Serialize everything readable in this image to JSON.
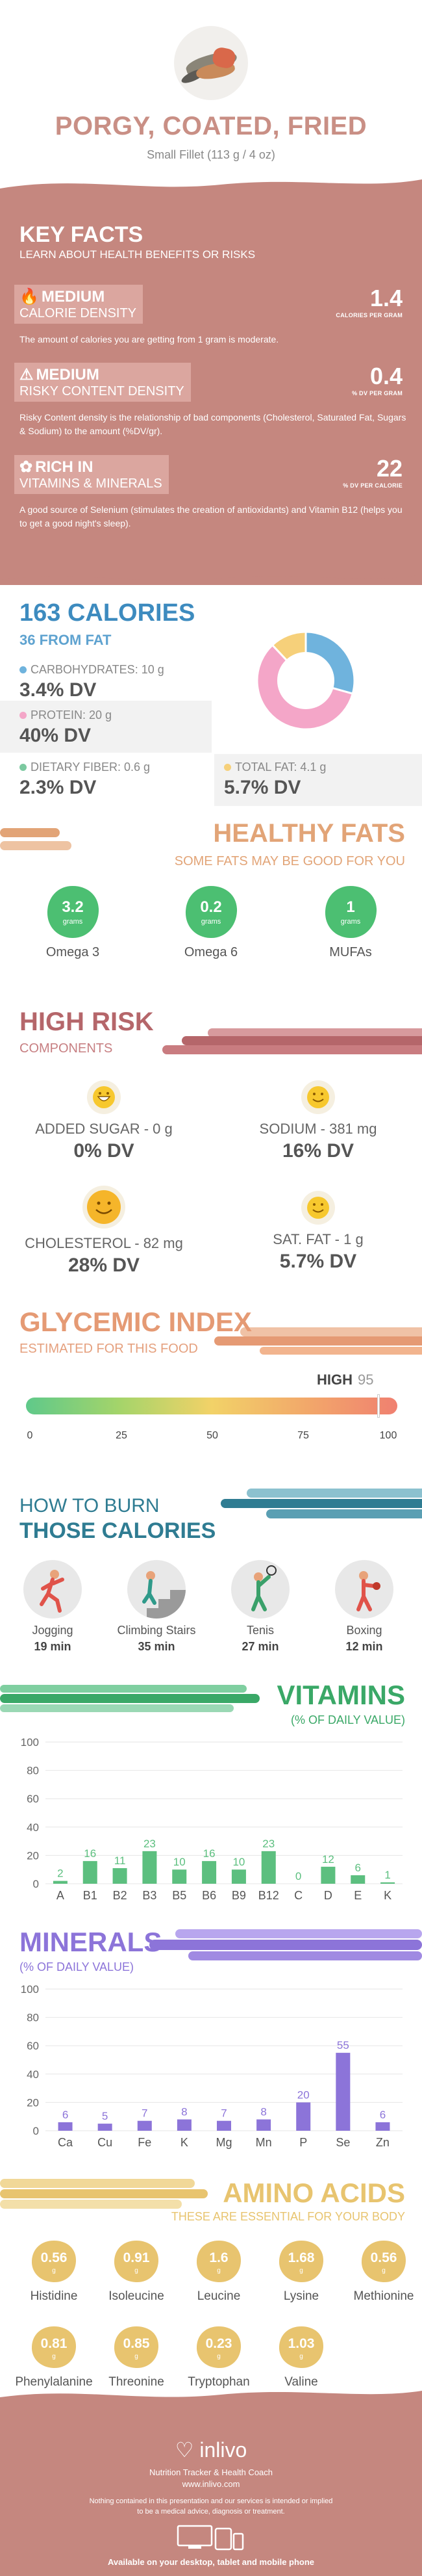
{
  "header": {
    "title": "PORGY, COATED, FRIED",
    "serving": "Small Fillet (113 g / 4 oz)"
  },
  "key_facts": {
    "title": "KEY FACTS",
    "subtitle": "LEARN ABOUT HEALTH BENEFITS OR RISKS",
    "items": [
      {
        "level": "MEDIUM",
        "label": "CALORIE DENSITY",
        "icon": "flame-icon",
        "value": "1.4",
        "unit": "CALORIES PER GRAM",
        "desc": "The amount of calories you are getting from 1 gram is moderate."
      },
      {
        "level": "MEDIUM",
        "label": "RISKY CONTENT DENSITY",
        "icon": "warning-icon",
        "value": "0.4",
        "unit": "% DV PER GRAM",
        "desc": "Risky Content density is the relationship of bad components (Cholesterol, Saturated Fat, Sugars & Sodium) to the amount (%DV/gr)."
      },
      {
        "level": "RICH  IN",
        "label": "VITAMINS & MINERALS",
        "icon": "leaf-icon",
        "value": "22",
        "unit": "% DV PER CALORIE",
        "desc": "A good source of Selenium (stimulates the creation of antioxidants) and Vitamin B12 (helps you to get a good night's sleep)."
      }
    ]
  },
  "calories": {
    "title": "163 CALORIES",
    "from_fat": "36 FROM FAT",
    "macros": {
      "carbs": {
        "label": "CARBOHYDRATES: 10 g",
        "dv": "3.4% DV",
        "color": "#6fb3dd"
      },
      "protein": {
        "label": "PROTEIN: 20 g",
        "dv": "40% DV",
        "color": "#f4a6c8"
      },
      "fiber": {
        "label": "DIETARY FIBER: 0.6 g",
        "dv": "2.3% DV",
        "color": "#7cc9a0"
      },
      "fat": {
        "label": "TOTAL FAT: 4.1 g",
        "dv": "5.7% DV",
        "color": "#f6d07a"
      }
    },
    "chart_data": {
      "type": "pie",
      "categories": [
        "Carbohydrates",
        "Protein",
        "Total Fat"
      ],
      "values": [
        10,
        20,
        4.1
      ],
      "colors": [
        "#6fb3dd",
        "#f4a6c8",
        "#f6d07a"
      ]
    }
  },
  "healthy_fats": {
    "title": "HEALTHY FATS",
    "subtitle": "SOME FATS MAY BE GOOD FOR YOU",
    "items": [
      {
        "value": "3.2",
        "unit": "grams",
        "name": "Omega 3"
      },
      {
        "value": "0.2",
        "unit": "grams",
        "name": "Omega 6"
      },
      {
        "value": "1",
        "unit": "grams",
        "name": "MUFAs"
      }
    ]
  },
  "high_risk": {
    "title": "HIGH RISK",
    "subtitle": "COMPONENTS",
    "items": [
      {
        "label": "ADDED SUGAR - 0 g",
        "dv": "0% DV",
        "face": "happy"
      },
      {
        "label": "SODIUM - 381 mg",
        "dv": "16% DV",
        "face": "smile"
      },
      {
        "label": "CHOLESTEROL - 82 mg",
        "dv": "28% DV",
        "face": "smile"
      },
      {
        "label": "SAT. FAT - 1 g",
        "dv": "5.7% DV",
        "face": "smile"
      }
    ]
  },
  "glycemic": {
    "title": "GLYCEMIC INDEX",
    "subtitle": "ESTIMATED FOR THIS FOOD",
    "level": "HIGH",
    "value": 95,
    "ticks": [
      "0",
      "25",
      "50",
      "75",
      "100"
    ]
  },
  "burn": {
    "title1": "HOW TO BURN",
    "title2": "THOSE CALORIES",
    "activities": [
      {
        "name": "Jogging",
        "minutes": "19 min",
        "icon": "jogging-icon"
      },
      {
        "name": "Climbing Stairs",
        "minutes": "35 min",
        "icon": "stairs-icon"
      },
      {
        "name": "Tenis",
        "minutes": "27 min",
        "icon": "tennis-icon"
      },
      {
        "name": "Boxing",
        "minutes": "12 min",
        "icon": "boxing-icon"
      }
    ]
  },
  "vitamins": {
    "title": "VITAMINS",
    "subtitle": "(% OF DAILY VALUE)",
    "chart_data": {
      "type": "bar",
      "categories": [
        "A",
        "B1",
        "B2",
        "B3",
        "B5",
        "B6",
        "B9",
        "B12",
        "C",
        "D",
        "E",
        "K"
      ],
      "values": [
        2,
        16,
        11,
        23,
        10,
        16,
        10,
        23,
        0,
        12,
        6,
        1
      ],
      "ylim": [
        0,
        100
      ],
      "yticks": [
        0,
        20,
        40,
        60,
        80,
        100
      ],
      "color": "#5cbf7f"
    }
  },
  "minerals": {
    "title": "MINERALS",
    "subtitle": "(% OF DAILY VALUE)",
    "chart_data": {
      "type": "bar",
      "categories": [
        "Ca",
        "Cu",
        "Fe",
        "K",
        "Mg",
        "Mn",
        "P",
        "Se",
        "Zn"
      ],
      "values": [
        6,
        5,
        7,
        8,
        7,
        8,
        20,
        55,
        6
      ],
      "ylim": [
        0,
        100
      ],
      "yticks": [
        0,
        20,
        40,
        60,
        80,
        100
      ],
      "color": "#8c74d9"
    }
  },
  "amino": {
    "title": "AMINO ACIDS",
    "subtitle": "THESE ARE ESSENTIAL FOR YOUR BODY",
    "items": [
      {
        "value": "0.56",
        "unit": "g",
        "name": "Histidine"
      },
      {
        "value": "0.91",
        "unit": "g",
        "name": "Isoleucine"
      },
      {
        "value": "1.6",
        "unit": "g",
        "name": "Leucine"
      },
      {
        "value": "1.68",
        "unit": "g",
        "name": "Lysine"
      },
      {
        "value": "0.56",
        "unit": "g",
        "name": "Methionine"
      },
      {
        "value": "0.81",
        "unit": "g",
        "name": "Phenylalanine"
      },
      {
        "value": "0.85",
        "unit": "g",
        "name": "Threonine"
      },
      {
        "value": "0.23",
        "unit": "g",
        "name": "Tryptophan"
      },
      {
        "value": "1.03",
        "unit": "g",
        "name": "Valine"
      }
    ]
  },
  "footer": {
    "brand": "inlivo",
    "tagline": "Nutrition Tracker & Health Coach",
    "url": "www.inlivo.com",
    "disclaimer1": "Nothing contained in this presentation and our services is intended or implied",
    "disclaimer2": "to be a medical advice, diagnosis or treatment.",
    "available": "Available on your desktop, tablet and mobile phone"
  }
}
